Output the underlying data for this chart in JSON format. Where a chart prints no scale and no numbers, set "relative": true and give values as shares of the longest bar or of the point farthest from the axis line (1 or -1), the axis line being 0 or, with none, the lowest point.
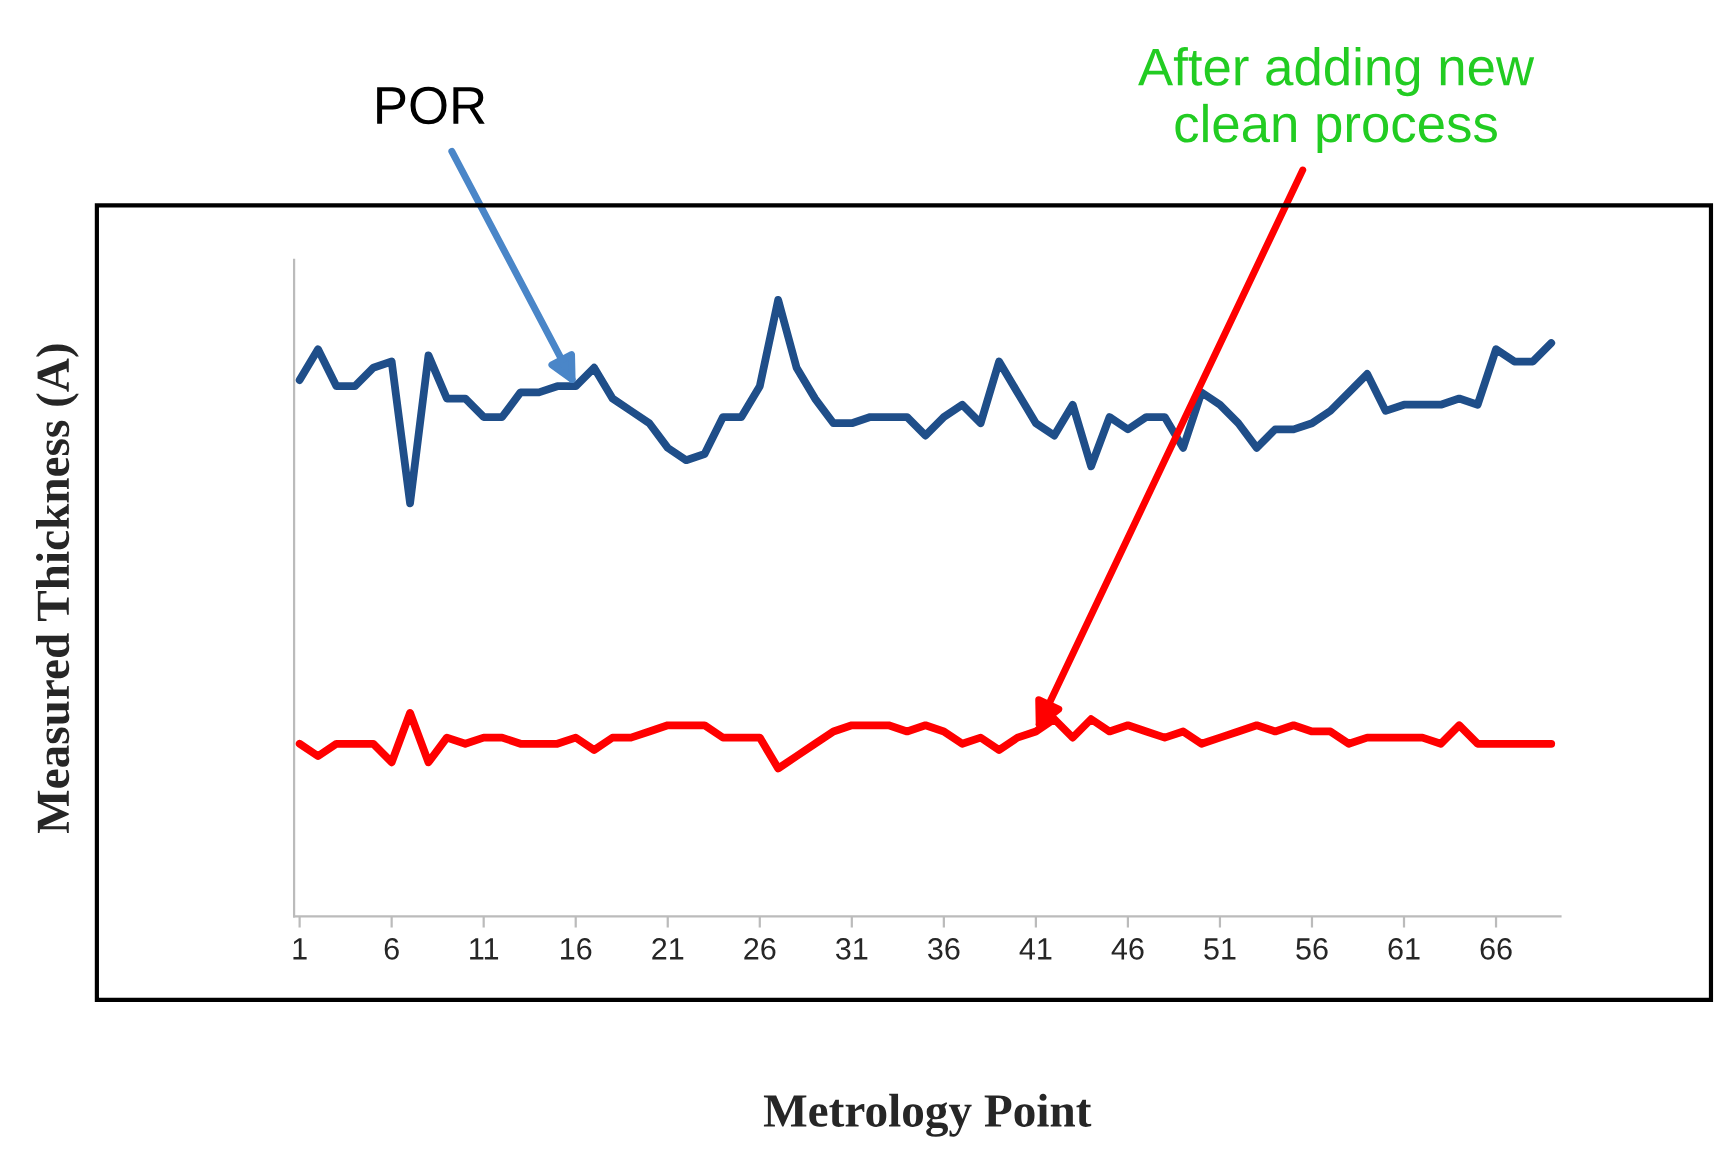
{
  "chart_data": {
    "type": "line",
    "relative": true,
    "xlabel": "Metrology Point",
    "ylabel": "Measured Thickness (A)",
    "categories": [
      "1",
      null,
      null,
      null,
      null,
      "6",
      null,
      null,
      null,
      null,
      "11",
      null,
      null,
      null,
      null,
      "16",
      null,
      null,
      null,
      null,
      "21",
      null,
      null,
      null,
      null,
      "26",
      null,
      null,
      null,
      null,
      "31",
      null,
      null,
      null,
      null,
      "36",
      null,
      null,
      null,
      null,
      "41",
      null,
      null,
      null,
      null,
      "46",
      null,
      null,
      null,
      null,
      "51",
      null,
      null,
      null,
      null,
      "56",
      null,
      null,
      null,
      null,
      "61",
      null,
      null,
      null,
      null,
      "66",
      null,
      null,
      null
    ],
    "series": [
      {
        "color": "#1f4e89",
        "values": [
          0.87,
          0.92,
          0.86,
          0.86,
          0.89,
          0.9,
          0.67,
          0.91,
          0.84,
          0.84,
          0.81,
          0.81,
          0.85,
          0.85,
          0.86,
          0.86,
          0.89,
          0.84,
          0.82,
          0.8,
          0.76,
          0.74,
          0.75,
          0.81,
          0.81,
          0.86,
          1.0,
          0.89,
          0.84,
          0.8,
          0.8,
          0.81,
          0.81,
          0.81,
          0.78,
          0.81,
          0.83,
          0.8,
          0.9,
          0.85,
          0.8,
          0.78,
          0.83,
          0.73,
          0.81,
          0.79,
          0.81,
          0.81,
          0.76,
          0.85,
          0.83,
          0.8,
          0.76,
          0.79,
          0.79,
          0.8,
          0.82,
          0.85,
          0.88,
          0.82,
          0.83,
          0.83,
          0.83,
          0.84,
          0.83,
          0.92,
          0.9,
          0.9,
          0.93
        ]
      },
      {
        "color": "#ff0000",
        "values": [
          0.28,
          0.26,
          0.28,
          0.28,
          0.28,
          0.25,
          0.33,
          0.25,
          0.29,
          0.28,
          0.29,
          0.29,
          0.28,
          0.28,
          0.28,
          0.29,
          0.27,
          0.29,
          0.29,
          0.3,
          0.31,
          0.31,
          0.31,
          0.29,
          0.29,
          0.29,
          0.24,
          0.26,
          0.28,
          0.3,
          0.31,
          0.31,
          0.31,
          0.3,
          0.31,
          0.3,
          0.28,
          0.29,
          0.27,
          0.29,
          0.3,
          0.32,
          0.29,
          0.32,
          0.3,
          0.31,
          0.3,
          0.29,
          0.3,
          0.28,
          0.29,
          0.3,
          0.31,
          0.3,
          0.31,
          0.3,
          0.3,
          0.28,
          0.29,
          0.29,
          0.29,
          0.29,
          0.28,
          0.31,
          0.28,
          0.28,
          0.28,
          0.28,
          0.28
        ]
      }
    ],
    "annotations": [
      {
        "text": "POR",
        "x": "16",
        "y": 0.86
      },
      {
        "text": "After adding new\nclean process",
        "x": "41",
        "y": 0.3
      }
    ]
  }
}
